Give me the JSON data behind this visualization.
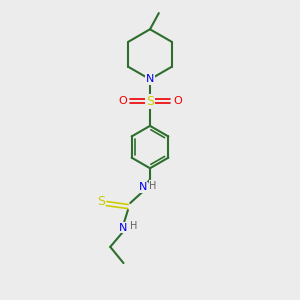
{
  "background_color": "#ececec",
  "bond_color": "#2d6e2d",
  "atom_colors": {
    "N": "#0000ee",
    "S": "#cccc00",
    "O": "#ee0000",
    "H": "#606060",
    "C": "#2d6e2d"
  },
  "figsize": [
    3.0,
    3.0
  ],
  "dpi": 100,
  "xlim": [
    0,
    10
  ],
  "ylim": [
    0,
    10
  ]
}
